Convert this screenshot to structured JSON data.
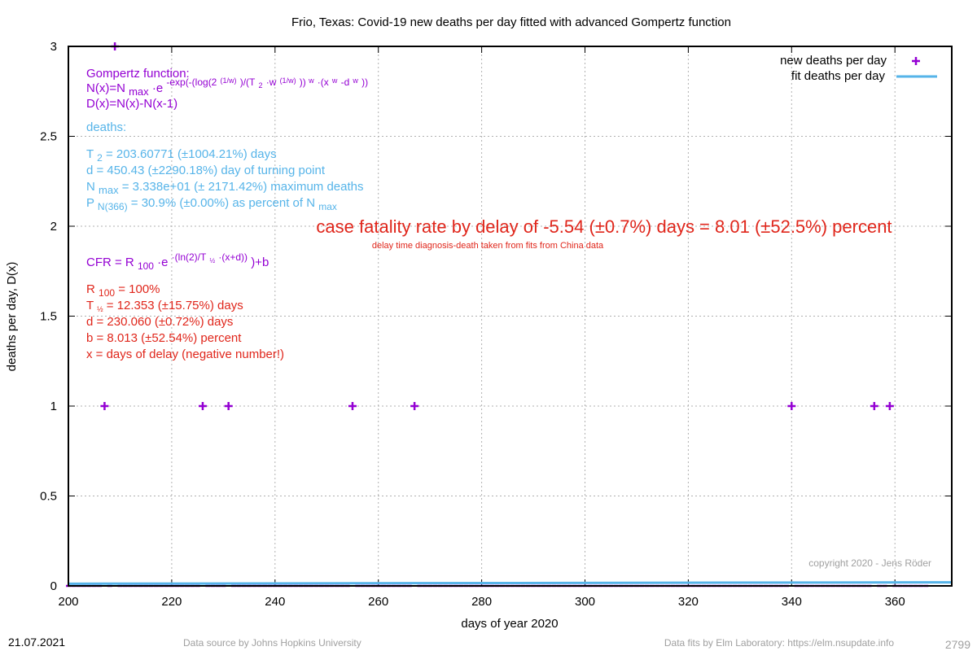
{
  "chart_data": {
    "type": "scatter",
    "title": "Frio,  Texas: Covid-19 new deaths per day fitted with advanced Gompertz function",
    "xlabel": "days of year 2020",
    "ylabel": "deaths per day, D(x)",
    "xlim": [
      200,
      371
    ],
    "ylim": [
      0,
      3
    ],
    "x_ticks": [
      200,
      220,
      240,
      260,
      280,
      300,
      320,
      340,
      360
    ],
    "y_ticks": [
      0,
      0.5,
      1,
      1.5,
      2,
      2.5,
      3
    ],
    "x_tick_labels": [
      "200",
      "220",
      "240",
      "260",
      "280",
      "300",
      "320",
      "340",
      "360"
    ],
    "y_tick_labels": [
      "0",
      "0.5",
      "1",
      "1.5",
      "2",
      "2.5",
      "3"
    ],
    "grid": true,
    "legend_position": "top-right",
    "series": [
      {
        "name": "new deaths per day",
        "color": "#9400d3",
        "marker": "plus",
        "points": [
          [
            207,
            1
          ],
          [
            209,
            3
          ],
          [
            226,
            1
          ],
          [
            231,
            1
          ],
          [
            255,
            1
          ],
          [
            267,
            1
          ],
          [
            340,
            1
          ],
          [
            356,
            1
          ],
          [
            359,
            1
          ]
        ],
        "zero_days_start": 200,
        "zero_days_end": 366
      },
      {
        "name": "fit deaths per day",
        "color": "#56b4e9",
        "line": true,
        "x": [
          200,
          371
        ],
        "y": [
          0.012,
          0.02
        ]
      }
    ]
  },
  "annotations": {
    "gompertz_heading": "Gompertz function:",
    "gompertz_n_main": "N(x)=N",
    "gompertz_n_sub": "max",
    "gompertz_n_dot": "·e",
    "gompertz_n_exp_a": "-exp(-(log(2",
    "gompertz_n_exp_b": "(1/w)",
    "gompertz_n_exp_c": ")/(T",
    "gompertz_n_exp_d": "2",
    "gompertz_n_exp_e": "·w",
    "gompertz_n_exp_f": "(1/w)",
    "gompertz_n_exp_g": ")) ",
    "gompertz_n_exp_h": "w",
    "gompertz_n_exp_i": "·(x",
    "gompertz_n_exp_j": "w",
    "gompertz_n_exp_k": "-d",
    "gompertz_n_exp_l": "w",
    "gompertz_n_exp_m": "))",
    "gompertz_d": "D(x)=N(x)-N(x-1)",
    "deaths_heading": "deaths:",
    "t2_main": "T",
    "t2_sub": "2",
    "t2_rest": " = 203.60771 (±1004.21%) days",
    "d_line": "d = 450.43 (±2290.18%) day of turning point",
    "nmax_main": "N",
    "nmax_sub": "max",
    "nmax_rest": " = 3.338e+01 (± 2171.42%) maximum deaths",
    "p_main": "P",
    "p_sub": "N(366)",
    "p_rest": " = 30.9% (±0.00%) as percent of N",
    "p_sub2": "max",
    "cfr_big": "case fatality rate by delay of -5.54 (±0.7%) days = 8.01 (±52.5%) percent",
    "cfr_small": "delay time diagnosis-death taken from fits from China data",
    "cfr_formula_a": "CFR = R",
    "cfr_formula_b": "100",
    "cfr_formula_c": "·e",
    "cfr_formula_d": "·(ln(2)/T",
    "cfr_formula_e": "½",
    "cfr_formula_f": " ·(x+d))",
    "cfr_formula_g": ")+b",
    "r100_main": "R",
    "r100_sub": "100",
    "r100_rest": " = 100%",
    "thalf_main": "T",
    "thalf_sub": "½",
    "thalf_rest": " = 12.353 (±15.75%) days",
    "d2_line": "d = 230.060 (±0.72%) days",
    "b_line": "b = 8.013 (±52.54%) percent",
    "x_line": "x = days of delay (negative number!)",
    "copyright": "copyright 2020 - Jens Röder"
  },
  "footer": {
    "date": "21.07.2021",
    "source": "Data source by Johns Hopkins University",
    "fits": "Data fits by Elm Laboratory: https://elm.nsupdate.info",
    "number": "2799"
  },
  "colors": {
    "purple": "#9400d3",
    "blue": "#56b4e9",
    "red": "#e0261b",
    "grey": "#a0a0a0"
  }
}
